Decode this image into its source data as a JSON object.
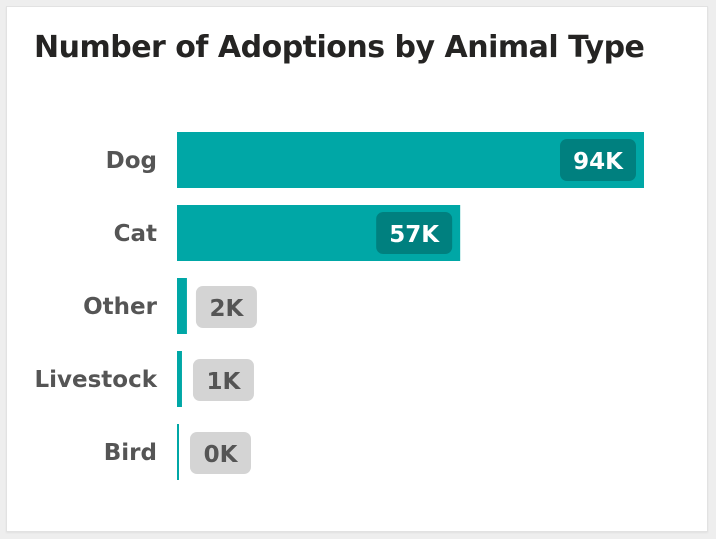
{
  "chart_data": {
    "type": "bar",
    "orientation": "horizontal",
    "title": "Number of Adoptions by Animal Type",
    "categories": [
      "Dog",
      "Cat",
      "Other",
      "Livestock",
      "Bird"
    ],
    "values": [
      94,
      57,
      2,
      1,
      0.4
    ],
    "value_labels": [
      "94K",
      "57K",
      "2K",
      "1K",
      "0K"
    ],
    "xlabel": "",
    "ylabel": "",
    "xlim": [
      0,
      94
    ],
    "unit": "K",
    "grid": false,
    "legend": "none"
  },
  "colors": {
    "bar": "#00A7A6",
    "label_bg_inside": "#00807F",
    "label_bg_outside": "#D4D4D4",
    "label_text_inside": "#FFFFFF",
    "label_text_outside": "#555555"
  }
}
